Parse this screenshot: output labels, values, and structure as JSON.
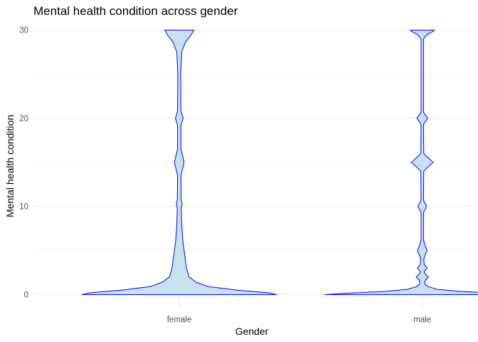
{
  "chart_data": {
    "type": "violin",
    "title": "Mental health condition across gender",
    "xlabel": "Gender",
    "ylabel": "Mental health condition",
    "categories": [
      "female",
      "male"
    ],
    "ylim": [
      -1.5,
      30.5
    ],
    "yticks": [
      0,
      10,
      20,
      30
    ],
    "grid": true,
    "legend": "none",
    "fill_color": "#c6e2ec",
    "line_color": "#0000ff",
    "grid_color": "#ebebeb",
    "violins": [
      {
        "category": "female",
        "max_half_width": 0.4,
        "profile": [
          [
            0,
            0.4
          ],
          [
            0.2,
            0.37
          ],
          [
            0.5,
            0.24
          ],
          [
            0.9,
            0.12
          ],
          [
            1.4,
            0.07
          ],
          [
            2.0,
            0.04
          ],
          [
            3.0,
            0.03
          ],
          [
            4.0,
            0.025
          ],
          [
            5.0,
            0.02
          ],
          [
            6.0,
            0.015
          ],
          [
            8.0,
            0.01
          ],
          [
            9.8,
            0.008
          ],
          [
            10.2,
            0.012
          ],
          [
            10.8,
            0.008
          ],
          [
            13.5,
            0.007
          ],
          [
            14.3,
            0.014
          ],
          [
            15.0,
            0.02
          ],
          [
            15.7,
            0.014
          ],
          [
            16.5,
            0.007
          ],
          [
            19.2,
            0.007
          ],
          [
            20.0,
            0.016
          ],
          [
            20.8,
            0.007
          ],
          [
            25.0,
            0.006
          ],
          [
            27.5,
            0.01
          ],
          [
            28.6,
            0.025
          ],
          [
            29.5,
            0.05
          ],
          [
            30.0,
            0.06
          ]
        ]
      },
      {
        "category": "male",
        "max_half_width": 0.4,
        "profile": [
          [
            0,
            0.4
          ],
          [
            0.15,
            0.32
          ],
          [
            0.35,
            0.16
          ],
          [
            0.6,
            0.06
          ],
          [
            0.9,
            0.025
          ],
          [
            1.2,
            0.01
          ],
          [
            1.6,
            0.012
          ],
          [
            2.0,
            0.025
          ],
          [
            2.4,
            0.01
          ],
          [
            2.6,
            0.008
          ],
          [
            3.0,
            0.02
          ],
          [
            3.4,
            0.008
          ],
          [
            4.0,
            0.006
          ],
          [
            4.5,
            0.012
          ],
          [
            5.0,
            0.02
          ],
          [
            5.5,
            0.012
          ],
          [
            6.2,
            0.005
          ],
          [
            9.3,
            0.005
          ],
          [
            10.0,
            0.018
          ],
          [
            10.7,
            0.005
          ],
          [
            14.0,
            0.006
          ],
          [
            14.5,
            0.025
          ],
          [
            15.0,
            0.045
          ],
          [
            15.5,
            0.025
          ],
          [
            16.0,
            0.006
          ],
          [
            19.3,
            0.005
          ],
          [
            20.0,
            0.022
          ],
          [
            20.7,
            0.005
          ],
          [
            29.0,
            0.005
          ],
          [
            29.5,
            0.02
          ],
          [
            29.85,
            0.045
          ],
          [
            30.0,
            0.05
          ]
        ]
      }
    ]
  }
}
